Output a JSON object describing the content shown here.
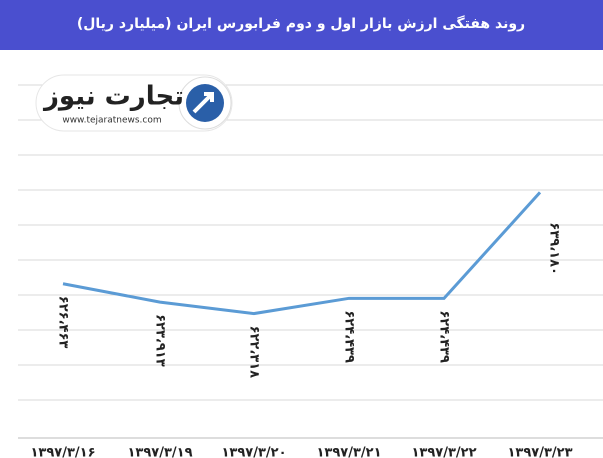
{
  "chart_data": {
    "type": "line",
    "title": "روند هفتگی ارزش بازار اول و دوم فرابورس  ایران (میلیارد ریال)",
    "logo": {
      "name": "تجارت نیوز",
      "url": "www.tejaratnews.com"
    },
    "categories": [
      "۱۳۹۷/۳/۱۶",
      "۱۳۹۷/۳/۱۹",
      "۱۳۹۷/۳/۲۰",
      "۱۳۹۷/۳/۲۱",
      "۱۳۹۷/۳/۲۲",
      "۱۳۹۷/۳/۲۳"
    ],
    "series": [
      {
        "color": "#5b9bd5",
        "values": [
          626463,
          623913,
          622318,
          624439,
          624439,
          639180
        ],
        "value_labels": [
          "۶۲۶،۴۶۳",
          "۶۲۳،۹۱۳",
          "۶۲۲،۳۱۸",
          "۶۲۴،۴۳۹",
          "۶۲۴،۴۳۹",
          "۶۳۹،۱۸۰"
        ]
      }
    ],
    "ylim": [
      605000,
      659000
    ]
  }
}
